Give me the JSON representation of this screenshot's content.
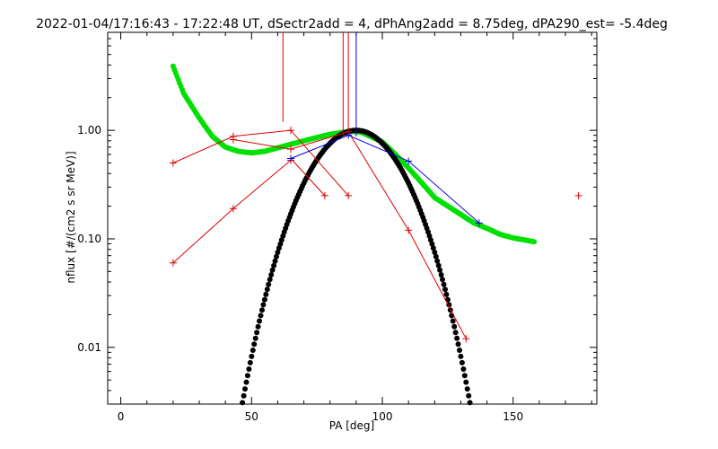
{
  "chart_data": {
    "type": "scatter",
    "title": "2022-01-04/17:16:43 - 17:22:48 UT, dSectr2add = 4, dPhAng2add = 8.75deg, dPA290_est=  -5.4deg",
    "xlabel": "PA [deg]",
    "ylabel": "nflux [#/(cm2 s sr MeV)]",
    "xlim": [
      -5,
      182
    ],
    "ylim": [
      0.003,
      8
    ],
    "yscale": "log",
    "grid": false,
    "xticks": [
      0,
      50,
      100,
      150
    ],
    "xtick_labels": [
      "0",
      "50",
      "100",
      "150"
    ],
    "yticks": [
      0.01,
      0.1,
      1.0
    ],
    "ytick_labels": [
      "0.01",
      "0.10",
      "1.00"
    ],
    "series": [
      {
        "color": "#e00000",
        "marker": "plus",
        "segments": [
          [
            [
              20,
              0.06
            ],
            [
              43,
              0.19
            ],
            [
              65,
              0.53
            ]
          ],
          [
            [
              20,
              0.5
            ],
            [
              43,
              0.88
            ],
            [
              65,
              1.0
            ],
            [
              87,
              0.25
            ]
          ],
          [
            [
              43,
              0.82
            ],
            [
              65,
              0.67
            ],
            [
              87,
              0.97
            ],
            [
              110,
              0.12
            ],
            [
              132,
              0.012
            ]
          ],
          [
            [
              65,
              0.55
            ],
            [
              78,
              0.25
            ]
          ]
        ],
        "points_only": [
          [
            175,
            0.25
          ]
        ],
        "vertical_lines": [
          {
            "x": 62,
            "y_from": 1.2
          },
          {
            "x": 85,
            "y_from": 0.9
          },
          {
            "x": 87,
            "y_from": 0.95
          }
        ]
      },
      {
        "color": "#0000e0",
        "marker": "plus",
        "points": [
          [
            65,
            0.55
          ],
          [
            87,
            0.9
          ],
          [
            110,
            0.52
          ],
          [
            137,
            0.14
          ]
        ],
        "vertical_lines": [
          {
            "x": 90,
            "y_from": 0.88
          }
        ]
      },
      {
        "color": "#00e000",
        "marker": "dot",
        "model": "green",
        "x_range": [
          20,
          158
        ]
      },
      {
        "color": "#000000",
        "marker": "dot",
        "model": "black",
        "x_range": [
          25,
          152
        ]
      }
    ]
  }
}
